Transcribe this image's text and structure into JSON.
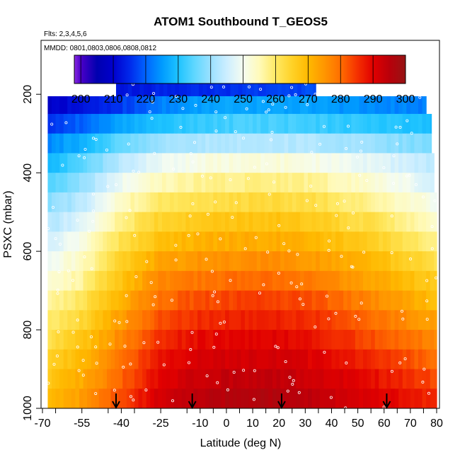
{
  "chart_data": {
    "type": "heatmap",
    "title": "ATOM1 Southbound T_GEOS5",
    "annotations": [
      "Flts: 2,3,4,5,6",
      "MMDD: 0801,0803,0806,0808,0812"
    ],
    "xlabel": "Latitude (deg N)",
    "ylabel": "PSXC (mbar)",
    "xlim": [
      -70,
      80
    ],
    "ylim": [
      1000,
      50
    ],
    "x_ticks": [
      "-70",
      "-55",
      "-40",
      "-25",
      "-10",
      "0",
      "10",
      "20",
      "30",
      "40",
      "50",
      "60",
      "70",
      "80"
    ],
    "x_tick_values": [
      -70,
      -55,
      -40,
      -25,
      -10,
      0,
      10,
      20,
      30,
      40,
      50,
      60,
      70,
      80
    ],
    "y_ticks": [
      "200",
      "400",
      "600",
      "800",
      "1000"
    ],
    "y_tick_values": [
      200,
      400,
      600,
      800,
      1000
    ],
    "colorbar": {
      "ticks": [
        "200",
        "210",
        "220",
        "230",
        "240",
        "250",
        "260",
        "270",
        "280",
        "290",
        "300"
      ],
      "tick_values": [
        200,
        210,
        220,
        230,
        240,
        250,
        260,
        270,
        280,
        290,
        300
      ],
      "range": [
        198,
        300
      ]
    },
    "arrow_latitudes": [
      -42,
      -13,
      21,
      61
    ],
    "pressure_levels": [
      50,
      180,
      225,
      275,
      325,
      375,
      425,
      475,
      525,
      575,
      625,
      675,
      725,
      775,
      825,
      875,
      925,
      975,
      1000
    ],
    "bands": [
      {
        "pmin": 165,
        "pmax": 205,
        "latmin": -42,
        "latmax": 34
      },
      {
        "pmin": 205,
        "pmax": 250,
        "latmin": -68,
        "latmax": 76
      },
      {
        "pmin": 250,
        "pmax": 300,
        "latmin": -68,
        "latmax": 78
      },
      {
        "pmin": 300,
        "pmax": 350,
        "latmin": -68,
        "latmax": 78
      },
      {
        "pmin": 350,
        "pmax": 400,
        "latmin": -68,
        "latmax": 79
      },
      {
        "pmin": 400,
        "pmax": 450,
        "latmin": -68,
        "latmax": 79
      },
      {
        "pmin": 450,
        "pmax": 500,
        "latmin": -68,
        "latmax": 80
      },
      {
        "pmin": 500,
        "pmax": 550,
        "latmin": -68,
        "latmax": 80
      },
      {
        "pmin": 550,
        "pmax": 600,
        "latmin": -68,
        "latmax": 80
      },
      {
        "pmin": 600,
        "pmax": 650,
        "latmin": -68,
        "latmax": 80
      },
      {
        "pmin": 650,
        "pmax": 700,
        "latmin": -68,
        "latmax": 80
      },
      {
        "pmin": 700,
        "pmax": 750,
        "latmin": -68,
        "latmax": 80
      },
      {
        "pmin": 750,
        "pmax": 800,
        "latmin": -68,
        "latmax": 80
      },
      {
        "pmin": 800,
        "pmax": 850,
        "latmin": -68,
        "latmax": 80
      },
      {
        "pmin": 850,
        "pmax": 900,
        "latmin": -68,
        "latmax": 80
      },
      {
        "pmin": 900,
        "pmax": 950,
        "latmin": -68,
        "latmax": 80
      },
      {
        "pmin": 950,
        "pmax": 1000,
        "latmin": -68,
        "latmax": 80
      }
    ],
    "temperature_profiles": [
      {
        "p": 185,
        "values": [
          212,
          212,
          213,
          214,
          215,
          216,
          217,
          218,
          217,
          216
        ]
      },
      {
        "p": 225,
        "values": [
          209,
          212,
          216,
          222,
          225,
          226,
          226,
          225,
          223,
          222
        ]
      },
      {
        "p": 275,
        "values": [
          216,
          220,
          226,
          230,
          232,
          233,
          233,
          232,
          231,
          229
        ]
      },
      {
        "p": 325,
        "values": [
          223,
          228,
          235,
          240,
          242,
          243,
          243,
          242,
          240,
          237
        ]
      },
      {
        "p": 375,
        "values": [
          228,
          234,
          243,
          249,
          251,
          252,
          252,
          251,
          248,
          243
        ]
      },
      {
        "p": 425,
        "values": [
          233,
          239,
          249,
          255,
          257,
          258,
          258,
          257,
          253,
          246
        ]
      },
      {
        "p": 475,
        "values": [
          238,
          243,
          254,
          260,
          262,
          263,
          263,
          262,
          257,
          250
        ]
      },
      {
        "p": 525,
        "values": [
          242,
          247,
          258,
          265,
          267,
          268,
          268,
          266,
          262,
          254
        ]
      },
      {
        "p": 575,
        "values": [
          246,
          251,
          262,
          269,
          271,
          272,
          272,
          270,
          266,
          258
        ]
      },
      {
        "p": 625,
        "values": [
          249,
          254,
          265,
          273,
          275,
          276,
          276,
          274,
          270,
          262
        ]
      },
      {
        "p": 675,
        "values": [
          252,
          257,
          268,
          277,
          279,
          280,
          280,
          278,
          273,
          266
        ]
      },
      {
        "p": 725,
        "values": [
          256,
          261,
          271,
          280,
          283,
          284,
          284,
          282,
          277,
          269
        ]
      },
      {
        "p": 775,
        "values": [
          259,
          264,
          274,
          283,
          286,
          287,
          287,
          285,
          280,
          273
        ]
      },
      {
        "p": 825,
        "values": [
          262,
          267,
          277,
          286,
          289,
          290,
          290,
          288,
          283,
          277
        ]
      },
      {
        "p": 875,
        "values": [
          265,
          270,
          279,
          288,
          291,
          292,
          292,
          290,
          286,
          280
        ]
      },
      {
        "p": 925,
        "values": [
          267,
          272,
          281,
          290,
          293,
          294,
          294,
          292,
          289,
          283
        ]
      },
      {
        "p": 975,
        "values": [
          269,
          274,
          283,
          292,
          295,
          296,
          296,
          294,
          291,
          286
        ]
      }
    ],
    "profile_latitudes": [
      -68,
      -55,
      -40,
      -25,
      -10,
      5,
      20,
      35,
      55,
      80
    ]
  }
}
